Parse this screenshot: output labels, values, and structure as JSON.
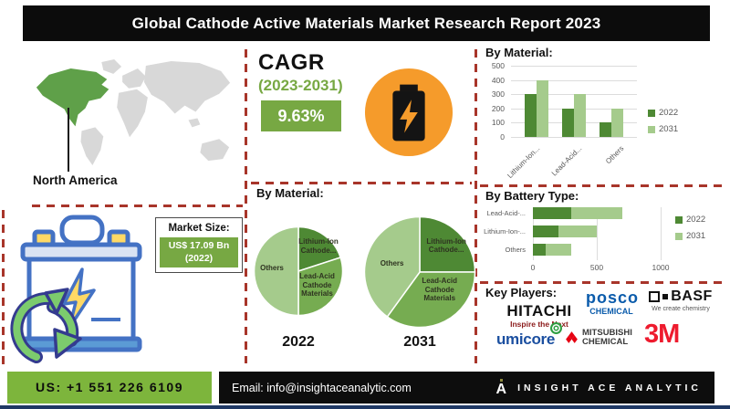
{
  "title": "Global Cathode Active Materials Market Research Report 2023",
  "region": {
    "label": "North America"
  },
  "cagr": {
    "heading": "CAGR",
    "period": "(2023-2031)",
    "value": "9.63%"
  },
  "market_size": {
    "heading": "Market Size:",
    "value": "US$ 17.09 Bn",
    "year": "(2022)"
  },
  "key_players": {
    "heading": "Key Players:",
    "hitachi": {
      "name": "HITACHI",
      "tagline": "Inspire the Next"
    },
    "posco": {
      "name": "posco",
      "division": "CHEMICAL"
    },
    "basf": {
      "name": "BASF",
      "tagline": "We create chemistry"
    },
    "umicore": {
      "name": "umicore"
    },
    "mitsubishi": {
      "line1": "MITSUBISHI",
      "line2": "CHEMICAL"
    },
    "threeM": {
      "name": "3M"
    }
  },
  "footer": {
    "phone": "US: +1 551 226 6109",
    "email": "Email: info@insightaceanalytic.com",
    "brand": "INSIGHT ACE ANALYTIC",
    "brand_initial": "A"
  },
  "colors": {
    "accent_green_dark": "#4E8934",
    "accent_green_mid": "#76AC51",
    "accent_green_light": "#A5CB8C",
    "badge_green": "#77A843",
    "footer_green": "#7DB53C",
    "orange": "#F59B2B",
    "dashed_red": "#A8352A",
    "navy": "#1F3864",
    "map_gray": "#D8D8D8",
    "map_highlight": "#5FA049"
  },
  "chart_data": [
    {
      "type": "bar",
      "title": "By Material:",
      "categories": [
        "Lithium-Ion...",
        "Lead-Acid...",
        "Others"
      ],
      "series": [
        {
          "name": "2022",
          "values": [
            300,
            200,
            100
          ]
        },
        {
          "name": "2031",
          "values": [
            400,
            300,
            200
          ]
        }
      ],
      "ylim": [
        0,
        500
      ],
      "yticks": [
        0,
        100,
        200,
        300,
        400,
        500
      ],
      "grid": true,
      "legend_position": "right"
    },
    {
      "type": "pie",
      "title": "By Material:",
      "year": "2022",
      "slices": [
        {
          "label": "Lithium-Ion Cathode...",
          "value": 20
        },
        {
          "label": "Lead-Acid Cathode Materials",
          "value": 30
        },
        {
          "label": "Others",
          "value": 50
        }
      ]
    },
    {
      "type": "pie",
      "title": "By Material:",
      "year": "2031",
      "slices": [
        {
          "label": "Lithium-Ion Cathode...",
          "value": 25
        },
        {
          "label": "Lead-Acid Cathode Materials",
          "value": 35
        },
        {
          "label": "Others",
          "value": 40
        }
      ]
    },
    {
      "type": "stacked-bar-horizontal",
      "title": "By Battery Type:",
      "categories": [
        "Lead-Acid-...",
        "Lithium-Ion-...",
        "Others"
      ],
      "series": [
        {
          "name": "2022",
          "values": [
            300,
            200,
            100
          ]
        },
        {
          "name": "2031",
          "values": [
            400,
            300,
            200
          ]
        }
      ],
      "xticks": [
        0,
        500,
        1000
      ],
      "xlim": [
        0,
        1030
      ],
      "grid": true,
      "legend_position": "right"
    }
  ]
}
